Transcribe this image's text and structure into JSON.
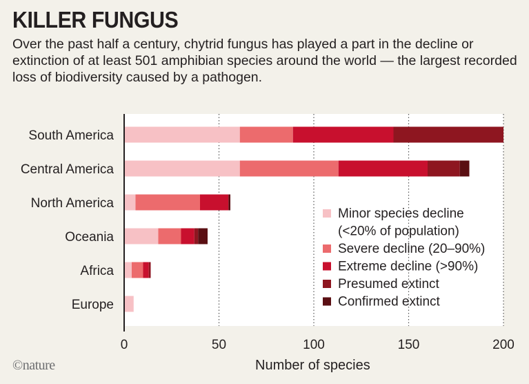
{
  "header": {
    "title": "KILLER FUNGUS",
    "subtitle": "Over the past half a century, chytrid fungus has played a part in the decline or extinction of at least 501 amphibian species around the world — the largest recorded loss of biodiversity caused by a pathogen."
  },
  "credit": "©nature",
  "chart_data": {
    "type": "bar",
    "orientation": "horizontal",
    "stacked": true,
    "categories": [
      "South America",
      "Central America",
      "North America",
      "Oceania",
      "Africa",
      "Europe"
    ],
    "series": [
      {
        "name": "Minor species decline\n(<20% of population)",
        "color": "#f7c1c5",
        "values": [
          61,
          61,
          6,
          18,
          4,
          5
        ]
      },
      {
        "name": "Severe decline (20–90%)",
        "color": "#ec6b6d",
        "values": [
          28,
          52,
          34,
          12,
          6,
          0
        ]
      },
      {
        "name": "Extreme decline (>90%)",
        "color": "#c8102e",
        "values": [
          53,
          47,
          15,
          7,
          3,
          0
        ]
      },
      {
        "name": "Presumed extinct",
        "color": "#8e1620",
        "values": [
          58,
          17,
          0,
          2,
          1,
          0
        ]
      },
      {
        "name": "Confirmed extinct",
        "color": "#5a0f13",
        "values": [
          0,
          5,
          1,
          5,
          0,
          0
        ]
      }
    ],
    "xlabel": "Number of species",
    "xlim": [
      0,
      200
    ],
    "xticks": [
      0,
      50,
      100,
      150,
      200
    ],
    "grid": "vertical-dotted",
    "legend": "bottom-right"
  }
}
